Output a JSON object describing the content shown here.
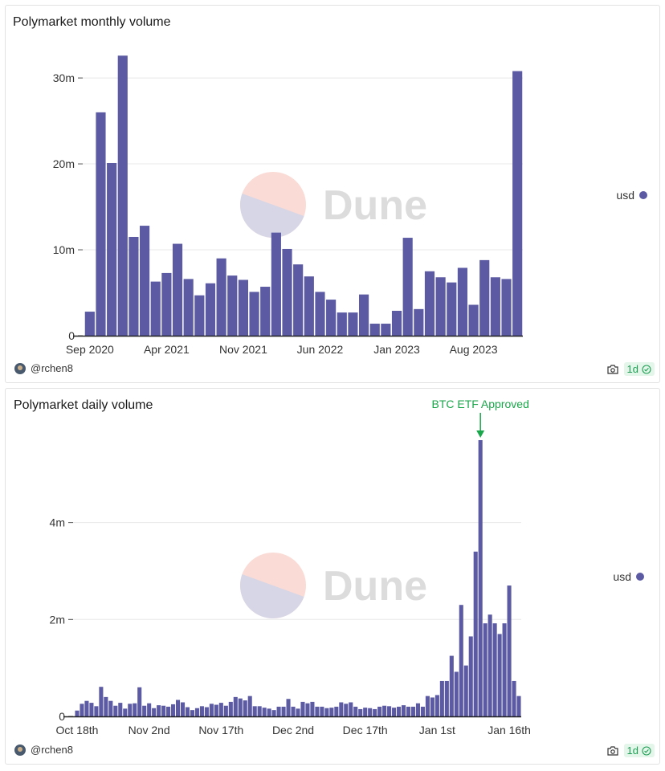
{
  "colors": {
    "bar": "#5b5aa3",
    "grid": "#e8e8e8",
    "axis": "#222222",
    "annotation": "#1aa64a",
    "badge_text": "#1f9d55"
  },
  "watermark": {
    "text": "Dune"
  },
  "charts": [
    {
      "title": "Polymarket monthly volume",
      "author": "@rchen8",
      "freshness": "1d",
      "legend": "usd",
      "chart_data": {
        "type": "bar",
        "title": "Polymarket monthly volume",
        "series": [
          {
            "name": "usd",
            "values": [
              2.8,
              26,
              20.1,
              32.6,
              11.5,
              12.8,
              6.3,
              7.3,
              10.7,
              6.6,
              4.7,
              6.1,
              9,
              7,
              6.5,
              5.1,
              5.7,
              12,
              10.1,
              8.3,
              6.9,
              5.1,
              4.2,
              2.7,
              2.7,
              4.8,
              1.4,
              1.4,
              2.9,
              11.4,
              3.1,
              7.5,
              6.8,
              6.2,
              7.9,
              3.6,
              8.8,
              6.8,
              6.6,
              30.8
            ]
          }
        ],
        "categories": [
          "Sep 2020",
          "Oct 2020",
          "Nov 2020",
          "Dec 2020",
          "Jan 2021",
          "Feb 2021",
          "Mar 2021",
          "Apr 2021",
          "May 2021",
          "Jun 2021",
          "Jul 2021",
          "Aug 2021",
          "Sep 2021",
          "Oct 2021",
          "Nov 2021",
          "Dec 2021",
          "Jan 2022",
          "Feb 2022",
          "Mar 2022",
          "Apr 2022",
          "May 2022",
          "Jun 2022",
          "Jul 2022",
          "Aug 2022",
          "Sep 2022",
          "Oct 2022",
          "Nov 2022",
          "Dec 2022",
          "Jan 2023",
          "Feb 2023",
          "Mar 2023",
          "Apr 2023",
          "May 2023",
          "Jun 2023",
          "Jul 2023",
          "Aug 2023",
          "Sep 2023",
          "Oct 2023",
          "Nov 2023",
          "Dec 2023"
        ],
        "x_tick_labels": [
          "Sep 2020",
          "Apr 2021",
          "Nov 2021",
          "Jun 2022",
          "Jan 2023",
          "Aug 2023"
        ],
        "x_tick_index": [
          0,
          7,
          14,
          21,
          28,
          35
        ],
        "y_unit": "m",
        "ylim": [
          0,
          33
        ],
        "y_ticks": [
          0,
          10,
          20,
          30
        ],
        "y_tick_labels": [
          "0",
          "10m",
          "20m",
          "30m"
        ]
      }
    },
    {
      "title": "Polymarket daily volume",
      "author": "@rchen8",
      "freshness": "1d",
      "legend": "usd",
      "annotation": {
        "text": "BTC ETF Approved",
        "index": 84
      },
      "chart_data": {
        "type": "bar",
        "title": "Polymarket daily volume",
        "series": [
          {
            "name": "usd",
            "values": [
              0.12,
              0.26,
              0.32,
              0.28,
              0.21,
              0.61,
              0.4,
              0.32,
              0.22,
              0.28,
              0.16,
              0.26,
              0.27,
              0.6,
              0.22,
              0.27,
              0.17,
              0.23,
              0.22,
              0.2,
              0.25,
              0.34,
              0.29,
              0.19,
              0.13,
              0.17,
              0.21,
              0.19,
              0.26,
              0.24,
              0.28,
              0.22,
              0.3,
              0.4,
              0.37,
              0.33,
              0.42,
              0.21,
              0.21,
              0.18,
              0.16,
              0.13,
              0.2,
              0.2,
              0.36,
              0.2,
              0.16,
              0.3,
              0.27,
              0.3,
              0.2,
              0.2,
              0.17,
              0.18,
              0.2,
              0.29,
              0.26,
              0.29,
              0.2,
              0.15,
              0.18,
              0.17,
              0.15,
              0.2,
              0.22,
              0.21,
              0.18,
              0.2,
              0.23,
              0.2,
              0.2,
              0.27,
              0.2,
              0.42,
              0.39,
              0.44,
              0.73,
              0.73,
              1.25,
              0.92,
              2.3,
              1.05,
              1.65,
              3.4,
              5.7,
              1.92,
              2.1,
              1.92,
              1.7,
              1.92,
              2.7,
              0.73,
              0.42
            ]
          }
        ],
        "categories_start": "Oct 18th",
        "x_tick_labels": [
          "Oct 18th",
          "Nov 2nd",
          "Nov 17th",
          "Dec 2nd",
          "Dec 17th",
          "Jan 1st",
          "Jan 16th"
        ],
        "x_tick_index": [
          0,
          15,
          30,
          45,
          60,
          75,
          90
        ],
        "y_unit": "m",
        "ylim": [
          0,
          5.8
        ],
        "y_ticks": [
          0,
          2,
          4
        ],
        "y_tick_labels": [
          "0",
          "2m",
          "4m"
        ]
      }
    }
  ]
}
